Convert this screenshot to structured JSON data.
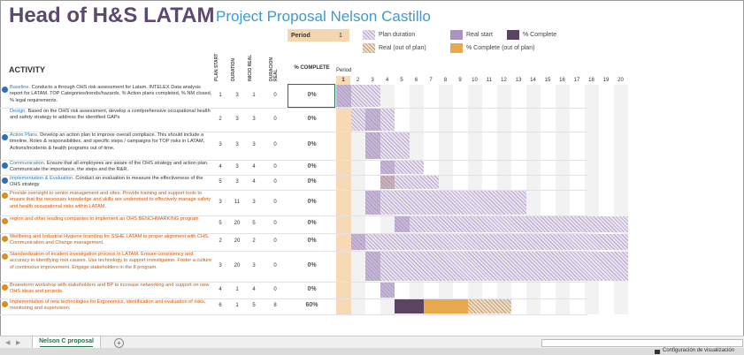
{
  "header": {
    "title": "Head of H&S LATAM",
    "subtitle": "Project Proposal Nelson Castillo"
  },
  "period": {
    "label": "Period",
    "value": "1"
  },
  "legend": {
    "plan_duration": "Plan duration",
    "real_start": "Real start",
    "percent_complete": "% Complete",
    "real_out_of_plan": "Real (out of plan)",
    "percent_complete_out_of_plan": "% Complete (out of plan)"
  },
  "colors": {
    "title": "#5b4a6e",
    "subtitle": "#3a9bd5",
    "plan_hatch": "#bfb0cf",
    "real_start": "#a993bf",
    "percent_complete": "#5b4462",
    "real_out_of_plan_hatch": "#c9a47c",
    "percent_complete_out_of_plan": "#e8a84c",
    "current_period": "#f8d9b5"
  },
  "columns": {
    "activity": "ACTIVITY",
    "plan_start": "PLAN START",
    "duration": "DURATION",
    "inicio_real": "INICIO REAL",
    "duracion_real": "DURACION REAL",
    "percent_complete": "% COMPLETE",
    "period": "Period"
  },
  "period_numbers": [
    "1",
    "2",
    "3",
    "4",
    "5",
    "6",
    "7",
    "8",
    "9",
    "10",
    "11",
    "12",
    "13",
    "14",
    "15",
    "16",
    "17",
    "18",
    "19",
    "20"
  ],
  "activities": [
    {
      "key": "Baseline",
      "text": "Conducto a through OHS risk assessment for Latam. INTELEX Data analysis report for LATAM. TOP Categories/trends/hazards. % Action plans completed, % NM closed, % legal requirements.",
      "plan_start": "1",
      "duration": "3",
      "real_start": "1",
      "real_duration": "0",
      "percent": "0%",
      "bullet": "blue",
      "orange": false
    },
    {
      "key": "Design",
      "text": "Based on the OHS risk assessment, develop a comlprehensive occupational health and safety strategy to address the identified GAPs",
      "plan_start": "2",
      "duration": "3",
      "real_start": "3",
      "real_duration": "0",
      "percent": "0%",
      "bullet": "none",
      "orange": false
    },
    {
      "key": "Action Plans",
      "text": "Develop an action plan to improve overall compliace. This should include a timeline, Roles & responsibilities, and specific steps / campaigns for TOP risks in LATAM, Actions/incidents & health programs out of time.",
      "plan_start": "3",
      "duration": "3",
      "real_start": "3",
      "real_duration": "0",
      "percent": "0%",
      "bullet": "blue",
      "orange": false
    },
    {
      "key": "Communication",
      "text": "Ensure that all employees are aware of the OHS strategy and action plan. Communicate the importance, the steps and the R&R.",
      "plan_start": "4",
      "duration": "3",
      "real_start": "4",
      "real_duration": "0",
      "percent": "0%",
      "bullet": "blue",
      "orange": false
    },
    {
      "key": "Implementation & Evaluation",
      "text": "Conduct an evaluation to measure the effectiveness of the OHS strategy",
      "plan_start": "5",
      "duration": "3",
      "real_start": "4",
      "real_duration": "0",
      "percent": "0%",
      "bullet": "blue",
      "orange": false
    },
    {
      "key": "",
      "text": "Provide oversight to senior management and sites. Provide training and support tools to ensure that the necessary knowledge and skills are understood to effectively manage safety and health occupational risks within LATAM.",
      "plan_start": "3",
      "duration": "11",
      "real_start": "3",
      "real_duration": "0",
      "percent": "0%",
      "bullet": "orange",
      "orange": true
    },
    {
      "key": "",
      "text": "region and other leading companies to implement an OHS BENCHMARKING program",
      "plan_start": "5",
      "duration": "20",
      "real_start": "5",
      "real_duration": "0",
      "percent": "0%",
      "bullet": "orange",
      "orange": true
    },
    {
      "key": "",
      "text": "Wellbeing and Industrial Hygiene branding for SSHE LATAM to proper alignment with CHS. Communication and Change management.",
      "plan_start": "2",
      "duration": "20",
      "real_start": "2",
      "real_duration": "0",
      "percent": "0%",
      "bullet": "orange",
      "orange": true
    },
    {
      "key": "",
      "text": "Standardization of incident investigation process in LATAM. Ensure consistency and accuracy in identifying root causes. Use technology to support investigation. Foster a culture of continuous improvement. Engage stakeholders in the 8 program.",
      "plan_start": "3",
      "duration": "20",
      "real_start": "3",
      "real_duration": "0",
      "percent": "0%",
      "bullet": "orange",
      "orange": true
    },
    {
      "key": "",
      "text": "Brainstorm workshop with stakeholders and BP to increase networking and support on new OHS ideas and projects.",
      "plan_start": "4",
      "duration": "1",
      "real_start": "4",
      "real_duration": "0",
      "percent": "0%",
      "bullet": "orange",
      "orange": true
    },
    {
      "key": "",
      "text": "Implementation of new technologies for Ergonomics, identification and evaluation of risks, monitoring and supervision.",
      "plan_start": "6",
      "duration": "1",
      "real_start": "5",
      "real_duration": "8",
      "percent": "60%",
      "bullet": "orange",
      "orange": true
    }
  ],
  "sheet_tabs": {
    "active": "Nelson C proposal",
    "add": "+"
  },
  "status": {
    "text": "Configuración de visualización"
  }
}
